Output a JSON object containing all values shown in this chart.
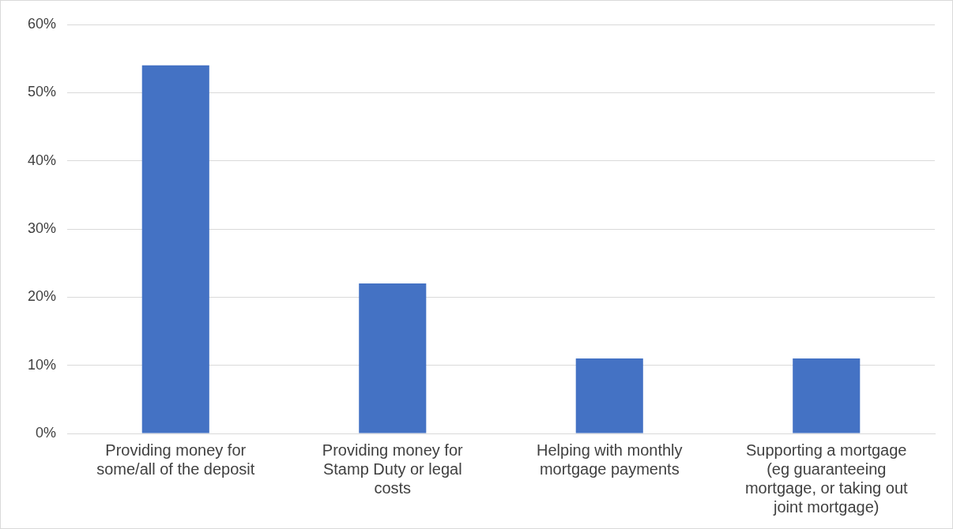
{
  "chart_data": {
    "type": "bar",
    "categories": [
      "Providing money for some/all of the deposit",
      "Providing money for Stamp Duty or legal costs",
      "Helping with monthly mortgage payments",
      "Supporting a mortgage (eg guaranteeing mortgage, or taking out joint mortgage)"
    ],
    "values": [
      54,
      22,
      11,
      11
    ],
    "color": "#4472c4",
    "ylim": [
      0,
      60
    ],
    "yticks": [
      {
        "value": 0,
        "label": "0%"
      },
      {
        "value": 10,
        "label": "10%"
      },
      {
        "value": 20,
        "label": "20%"
      },
      {
        "value": 30,
        "label": "30%"
      },
      {
        "value": 40,
        "label": "40%"
      },
      {
        "value": 50,
        "label": "50%"
      },
      {
        "value": 60,
        "label": "60%"
      }
    ],
    "grid": "y",
    "legend": false
  }
}
